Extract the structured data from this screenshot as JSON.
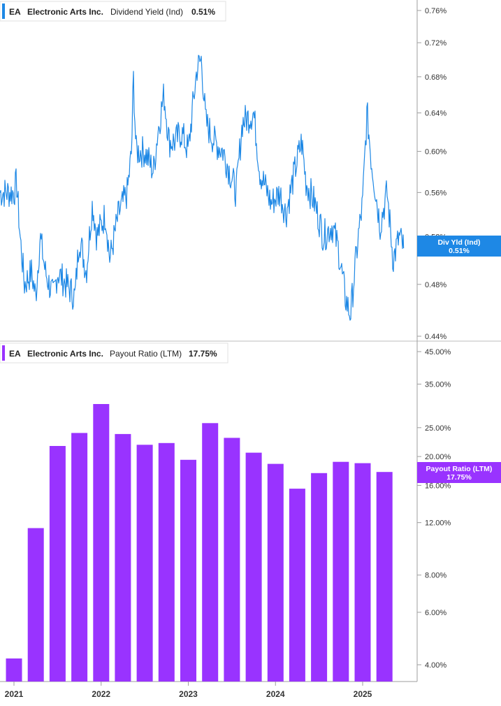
{
  "colors": {
    "yield": "#1e88e5",
    "payout": "#9933ff",
    "axis": "#9e9e9e",
    "tick_text": "#333333",
    "label_text": "#ffffff"
  },
  "panels": {
    "top": {
      "ticker": "EA",
      "company": "Electronic Arts Inc.",
      "metric": "Dividend Yield (Ind)",
      "value": "0.51%",
      "badge_line1": "Div Yld (Ind)",
      "badge_line2": "0.51%"
    },
    "bottom": {
      "ticker": "EA",
      "company": "Electronic Arts Inc.",
      "metric": "Payout Ratio (LTM)",
      "value": "17.75%",
      "badge_line1": "Payout Ratio (LTM)",
      "badge_line2": "17.75%"
    }
  },
  "x_axis": {
    "range": [
      2021.0,
      2025.62
    ],
    "ticks": [
      {
        "value": 2021,
        "label": "2021"
      },
      {
        "value": 2022,
        "label": "2022"
      },
      {
        "value": 2023,
        "label": "2023"
      },
      {
        "value": 2024,
        "label": "2024"
      },
      {
        "value": 2025,
        "label": "2025"
      }
    ]
  },
  "chart_data": [
    {
      "type": "line",
      "title": "EA Electronic Arts Inc. Dividend Yield (Ind) 0.51%",
      "series": [
        {
          "name": "Div Yld (Ind)"
        }
      ],
      "y_scale": "log",
      "ylim": [
        0.44,
        0.77
      ],
      "y_ticks": [
        {
          "value": 0.76,
          "label": "0.76%"
        },
        {
          "value": 0.72,
          "label": "0.72%"
        },
        {
          "value": 0.68,
          "label": "0.68%"
        },
        {
          "value": 0.64,
          "label": "0.64%"
        },
        {
          "value": 0.6,
          "label": "0.60%"
        },
        {
          "value": 0.56,
          "label": "0.56%"
        },
        {
          "value": 0.52,
          "label": "0.52%"
        },
        {
          "value": 0.48,
          "label": "0.48%"
        },
        {
          "value": 0.44,
          "label": "0.44%"
        }
      ],
      "last_value": 0.51,
      "anchors": [
        [
          2021.0,
          0.56
        ],
        [
          2021.03,
          0.57
        ],
        [
          2021.07,
          0.52
        ],
        [
          2021.12,
          0.48
        ],
        [
          2021.2,
          0.49
        ],
        [
          2021.25,
          0.47
        ],
        [
          2021.3,
          0.52
        ],
        [
          2021.36,
          0.49
        ],
        [
          2021.45,
          0.47
        ],
        [
          2021.5,
          0.49
        ],
        [
          2021.6,
          0.48
        ],
        [
          2021.7,
          0.47
        ],
        [
          2021.75,
          0.52
        ],
        [
          2021.83,
          0.49
        ],
        [
          2021.9,
          0.55
        ],
        [
          2021.95,
          0.52
        ],
        [
          2022.05,
          0.54
        ],
        [
          2022.1,
          0.5
        ],
        [
          2022.2,
          0.54
        ],
        [
          2022.3,
          0.56
        ],
        [
          2022.35,
          0.6
        ],
        [
          2022.37,
          0.68
        ],
        [
          2022.4,
          0.6
        ],
        [
          2022.5,
          0.6
        ],
        [
          2022.6,
          0.58
        ],
        [
          2022.65,
          0.62
        ],
        [
          2022.72,
          0.66
        ],
        [
          2022.78,
          0.61
        ],
        [
          2022.85,
          0.61
        ],
        [
          2022.92,
          0.62
        ],
        [
          2023.0,
          0.6
        ],
        [
          2023.1,
          0.69
        ],
        [
          2023.15,
          0.7
        ],
        [
          2023.2,
          0.63
        ],
        [
          2023.3,
          0.61
        ],
        [
          2023.4,
          0.6
        ],
        [
          2023.55,
          0.56
        ],
        [
          2023.62,
          0.63
        ],
        [
          2023.75,
          0.64
        ],
        [
          2023.82,
          0.58
        ],
        [
          2023.95,
          0.55
        ],
        [
          2024.05,
          0.56
        ],
        [
          2024.12,
          0.54
        ],
        [
          2024.22,
          0.58
        ],
        [
          2024.3,
          0.61
        ],
        [
          2024.35,
          0.57
        ],
        [
          2024.45,
          0.55
        ],
        [
          2024.55,
          0.52
        ],
        [
          2024.65,
          0.53
        ],
        [
          2024.72,
          0.51
        ],
        [
          2024.8,
          0.47
        ],
        [
          2024.86,
          0.455
        ],
        [
          2024.95,
          0.52
        ],
        [
          2025.0,
          0.55
        ],
        [
          2025.05,
          0.64
        ],
        [
          2025.1,
          0.59
        ],
        [
          2025.2,
          0.53
        ],
        [
          2025.28,
          0.56
        ],
        [
          2025.35,
          0.5
        ],
        [
          2025.42,
          0.52
        ],
        [
          2025.47,
          0.51
        ]
      ]
    },
    {
      "type": "bar",
      "title": "EA Electronic Arts Inc. Payout Ratio (LTM) 17.75%",
      "series": [
        {
          "name": "Payout Ratio (LTM)"
        }
      ],
      "y_scale": "log",
      "ylim": [
        3.6,
        45.0
      ],
      "y_ticks": [
        {
          "value": 45,
          "label": "45.00%"
        },
        {
          "value": 35,
          "label": "35.00%"
        },
        {
          "value": 25,
          "label": "25.00%"
        },
        {
          "value": 20,
          "label": "20.00%"
        },
        {
          "value": 16,
          "label": "16.00%"
        },
        {
          "value": 12,
          "label": "12.00%"
        },
        {
          "value": 8,
          "label": "8.00%"
        },
        {
          "value": 6,
          "label": "6.00%"
        },
        {
          "value": 4,
          "label": "4.00%"
        }
      ],
      "bars": [
        {
          "x": 2021.0,
          "value": 4.2
        },
        {
          "x": 2021.25,
          "value": 11.5
        },
        {
          "x": 2021.5,
          "value": 21.7
        },
        {
          "x": 2021.75,
          "value": 24.0
        },
        {
          "x": 2022.0,
          "value": 30.0
        },
        {
          "x": 2022.25,
          "value": 23.8
        },
        {
          "x": 2022.5,
          "value": 21.9
        },
        {
          "x": 2022.75,
          "value": 22.2
        },
        {
          "x": 2023.0,
          "value": 19.5
        },
        {
          "x": 2023.25,
          "value": 25.9
        },
        {
          "x": 2023.5,
          "value": 23.1
        },
        {
          "x": 2023.75,
          "value": 20.6
        },
        {
          "x": 2024.0,
          "value": 18.9
        },
        {
          "x": 2024.25,
          "value": 15.6
        },
        {
          "x": 2024.5,
          "value": 17.6
        },
        {
          "x": 2024.75,
          "value": 19.2
        },
        {
          "x": 2025.0,
          "value": 19.0
        },
        {
          "x": 2025.25,
          "value": 17.75
        }
      ]
    }
  ]
}
